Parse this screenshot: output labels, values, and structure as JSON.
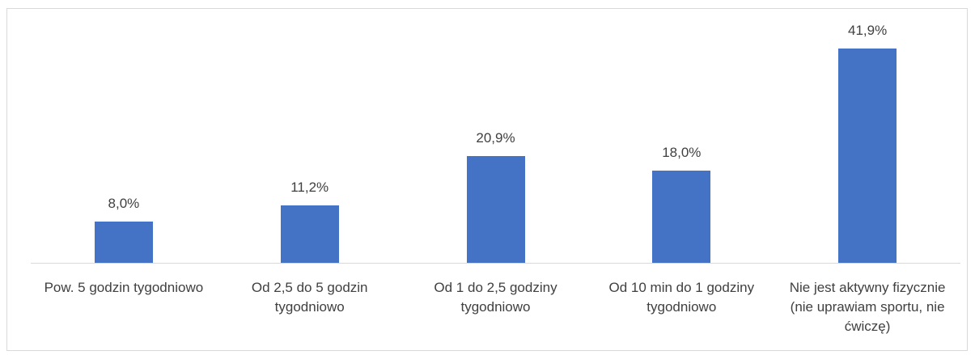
{
  "chart_data": {
    "type": "bar",
    "categories": [
      "Pow. 5 godzin tygodniowo",
      "Od 2,5 do 5 godzin tygodniowo",
      "Od 1 do 2,5 godziny tygodniowo",
      "Od 10 min do 1 godziny tygodniowo",
      "Nie jest aktywny fizycznie (nie uprawiam sportu, nie ćwiczę)"
    ],
    "values": [
      8.0,
      11.2,
      20.9,
      18.0,
      41.9
    ],
    "value_labels": [
      "8,0%",
      "11,2%",
      "20,9%",
      "18,0%",
      "41,9%"
    ],
    "color": "#4472c4"
  }
}
